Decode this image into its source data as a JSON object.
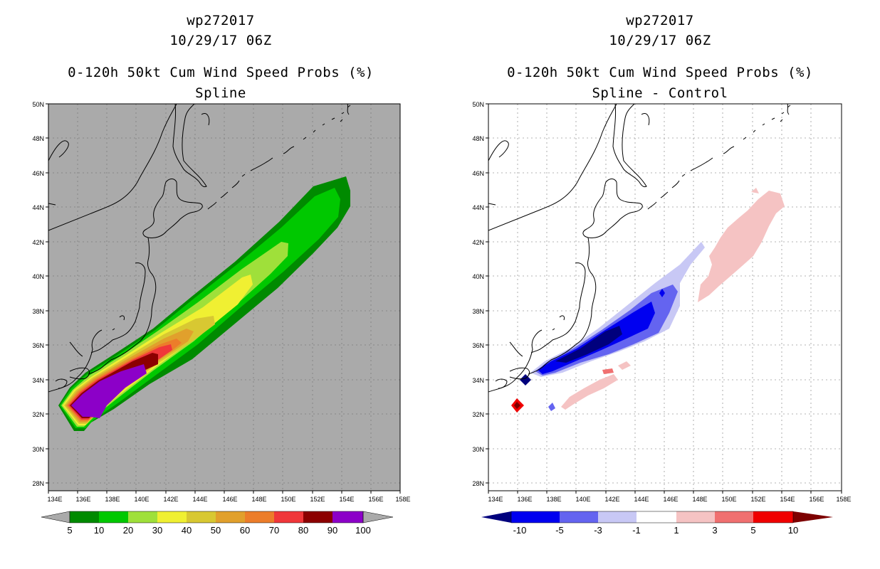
{
  "left_panel": {
    "storm_id": "wp272017",
    "datetime": "10/29/17 06Z",
    "product": "0-120h 50kt Cum Wind Speed Probs (%)",
    "subtitle": "Spline",
    "lat_labels": [
      "50N",
      "48N",
      "46N",
      "44N",
      "42N",
      "40N",
      "38N",
      "36N",
      "34N",
      "32N",
      "30N",
      "28N"
    ],
    "lon_labels": [
      "134E",
      "136E",
      "138E",
      "140E",
      "142E",
      "144E",
      "146E",
      "148E",
      "150E",
      "152E",
      "154E",
      "156E",
      "158E"
    ],
    "colorbar": {
      "labels": [
        "5",
        "10",
        "20",
        "30",
        "40",
        "50",
        "60",
        "70",
        "80",
        "90",
        "100"
      ],
      "colors": [
        "#008a00",
        "#00c800",
        "#9fe03a",
        "#f0f032",
        "#d8c832",
        "#e1a02c",
        "#ec7d2a",
        "#f0373a",
        "#8c0000",
        "#8c00c8"
      ]
    }
  },
  "right_panel": {
    "storm_id": "wp272017",
    "datetime": "10/29/17 06Z",
    "product": "0-120h 50kt Cum Wind Speed Probs (%)",
    "subtitle": "Spline - Control",
    "lat_labels": [
      "50N",
      "48N",
      "46N",
      "44N",
      "42N",
      "40N",
      "38N",
      "36N",
      "34N",
      "32N",
      "30N",
      "28N"
    ],
    "lon_labels": [
      "134E",
      "136E",
      "138E",
      "140E",
      "142E",
      "144E",
      "146E",
      "148E",
      "150E",
      "152E",
      "154E",
      "156E",
      "158E"
    ],
    "colorbar": {
      "labels": [
        "-10",
        "-5",
        "-3",
        "-1",
        "1",
        "3",
        "5",
        "10"
      ],
      "colors": [
        "#00007d",
        "#0000f0",
        "#6464f0",
        "#c8c8f5",
        "#ffffff",
        "#f5c3c3",
        "#f07070",
        "#f00000",
        "#7d0000"
      ]
    }
  }
}
